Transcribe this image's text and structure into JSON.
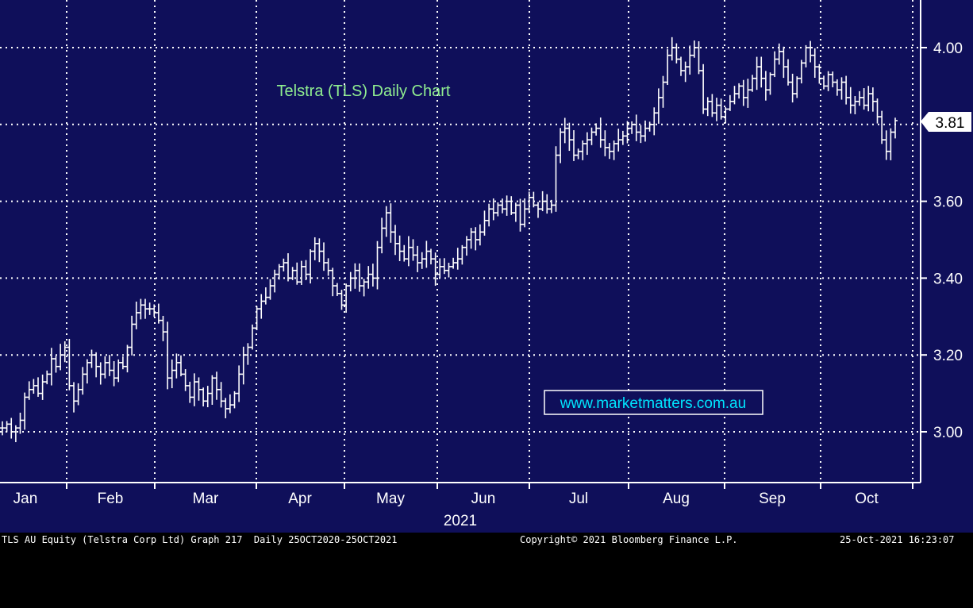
{
  "chart_data": {
    "type": "ohlc-bar",
    "title": "Telstra (TLS) Daily Chart",
    "watermark": "www.marketmatters.com.au",
    "year_label": "2021",
    "x_months": [
      "Jan",
      "Feb",
      "Mar",
      "Apr",
      "May",
      "Jun",
      "Jul",
      "Aug",
      "Sep",
      "Oct"
    ],
    "y_ticks": [
      "3.00",
      "3.20",
      "3.40",
      "3.60",
      "4.00"
    ],
    "ylim": [
      2.87,
      4.12
    ],
    "last_price": "3.81",
    "grid": true,
    "colors": {
      "background": "#0f0f5a",
      "bars": "#ffffff",
      "title": "#90ee90",
      "watermark": "#00e5ff",
      "grid": "#ffffff"
    },
    "series": [
      {
        "name": "Telstra (TLS)",
        "monthly_close": [
          3.08,
          3.12,
          3.22,
          3.38,
          3.43,
          3.58,
          3.75,
          3.86,
          3.9,
          3.81
        ]
      }
    ],
    "daily_close": [
      3.01,
      3.02,
      3.0,
      3.01,
      3.03,
      3.09,
      3.11,
      3.12,
      3.1,
      3.13,
      3.15,
      3.19,
      3.17,
      3.2,
      3.22,
      3.12,
      3.08,
      3.11,
      3.15,
      3.18,
      3.2,
      3.17,
      3.15,
      3.18,
      3.16,
      3.14,
      3.18,
      3.17,
      3.22,
      3.28,
      3.31,
      3.33,
      3.32,
      3.32,
      3.31,
      3.29,
      3.26,
      3.14,
      3.16,
      3.18,
      3.15,
      3.12,
      3.09,
      3.13,
      3.11,
      3.08,
      3.1,
      3.14,
      3.11,
      3.08,
      3.06,
      3.07,
      3.1,
      3.15,
      3.2,
      3.22,
      3.27,
      3.32,
      3.34,
      3.35,
      3.38,
      3.41,
      3.43,
      3.44,
      3.4,
      3.42,
      3.39,
      3.43,
      3.41,
      3.47,
      3.49,
      3.47,
      3.44,
      3.42,
      3.38,
      3.36,
      3.33,
      3.38,
      3.4,
      3.42,
      3.38,
      3.39,
      3.41,
      3.4,
      3.48,
      3.53,
      3.57,
      3.52,
      3.49,
      3.47,
      3.45,
      3.48,
      3.46,
      3.44,
      3.45,
      3.47,
      3.45,
      3.41,
      3.43,
      3.42,
      3.43,
      3.44,
      3.45,
      3.48,
      3.5,
      3.52,
      3.5,
      3.52,
      3.55,
      3.58,
      3.57,
      3.59,
      3.58,
      3.6,
      3.57,
      3.59,
      3.54,
      3.58,
      3.61,
      3.59,
      3.58,
      3.6,
      3.58,
      3.59,
      3.72,
      3.78,
      3.79,
      3.76,
      3.72,
      3.73,
      3.75,
      3.76,
      3.78,
      3.79,
      3.76,
      3.74,
      3.73,
      3.75,
      3.76,
      3.77,
      3.79,
      3.8,
      3.78,
      3.77,
      3.79,
      3.8,
      3.83,
      3.87,
      3.91,
      3.98,
      4.0,
      3.97,
      3.94,
      3.95,
      3.98,
      4.0,
      3.94,
      3.84,
      3.86,
      3.83,
      3.85,
      3.82,
      3.84,
      3.86,
      3.88,
      3.9,
      3.87,
      3.89,
      3.92,
      3.95,
      3.92,
      3.89,
      3.93,
      3.97,
      3.99,
      3.95,
      3.91,
      3.88,
      3.92,
      3.96,
      4.0,
      3.98,
      3.95,
      3.92,
      3.9,
      3.93,
      3.91,
      3.89,
      3.91,
      3.87,
      3.85,
      3.86,
      3.87,
      3.85,
      3.88,
      3.86,
      3.82,
      3.76,
      3.73,
      3.78,
      3.81
    ],
    "date_range_days": 208
  },
  "footer": {
    "left": "TLS AU Equity (Telstra Corp Ltd) Graph 217  Daily 25OCT2020-25OCT2021",
    "center": "Copyright© 2021 Bloomberg Finance L.P.",
    "right": "25-Oct-2021 16:23:07"
  }
}
